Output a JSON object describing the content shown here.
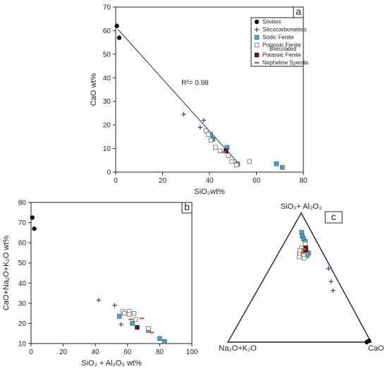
{
  "colors": {
    "sovites": "#111111",
    "silicocarbonatites": "#3a3a9c",
    "sodic_fenite": "#49a6cf",
    "potassic_fenite_fill": "#ffffff",
    "potassic_fenite_stroke": "#777777",
    "brecciated_potassic_fenite": "#6b1a1a",
    "nepheline_syenite": "#e05a2b",
    "axis": "#222222"
  },
  "chart_data": [
    {
      "panel": "a",
      "type": "scatter",
      "title": "",
      "xlabel": "SiO₂wt%",
      "ylabel": "CaO wt%",
      "xlim": [
        0,
        80
      ],
      "ylim": [
        0,
        70
      ],
      "xticks": [
        "0",
        "20",
        "40",
        "60",
        "80"
      ],
      "yticks": [
        "0",
        "10",
        "20",
        "30",
        "40",
        "50",
        "60",
        "70"
      ],
      "xtick_values": [
        0,
        20,
        40,
        60,
        80
      ],
      "ytick_values": [
        0,
        10,
        20,
        30,
        40,
        50,
        60,
        70
      ],
      "legend_position": "top-right",
      "legend": [
        {
          "key": "sovites",
          "label": "Sövites"
        },
        {
          "key": "silicocarbonatites",
          "label": "Silicocarbonatites"
        },
        {
          "key": "sodic_fenite",
          "label": "Sodic Fenite"
        },
        {
          "key": "potassic_fenite",
          "label": "Potassic Fenite"
        },
        {
          "key": "brecciated_potassic_fenite",
          "label": "Brecciated",
          "label2": "Potassic Fenite"
        },
        {
          "key": "nepheline_syenite",
          "label": "Nepheline Syenite"
        }
      ],
      "annotation": "R²= 0.98",
      "trendline": [
        [
          1,
          60.5
        ],
        [
          53,
          3
        ]
      ],
      "series": [
        {
          "key": "sovites",
          "points": [
            [
              0.5,
              62
            ],
            [
              1.5,
              57
            ]
          ]
        },
        {
          "key": "silicocarbonatites",
          "points": [
            [
              29,
              24.5
            ],
            [
              37.5,
              22
            ],
            [
              36,
              19
            ]
          ]
        },
        {
          "key": "sodic_fenite",
          "points": [
            [
              40.5,
              16
            ],
            [
              41.5,
              14
            ],
            [
              47.5,
              10.5
            ],
            [
              47,
              9
            ],
            [
              52,
              3.5
            ],
            [
              68.5,
              3.5
            ],
            [
              71,
              2
            ]
          ]
        },
        {
          "key": "potassic_fenite",
          "points": [
            [
              38.5,
              17.5
            ],
            [
              39.5,
              16
            ],
            [
              40.5,
              13.5
            ],
            [
              42.5,
              10.5
            ],
            [
              44.5,
              9
            ],
            [
              48,
              7
            ],
            [
              49.5,
              4.5
            ],
            [
              51.5,
              3
            ],
            [
              57,
              4.5
            ]
          ]
        },
        {
          "key": "brecciated_potassic_fenite",
          "points": [
            [
              47,
              9
            ]
          ]
        },
        {
          "key": "nepheline_syenite",
          "points": [
            [
              46,
              8.5
            ]
          ]
        }
      ]
    },
    {
      "panel": "b",
      "type": "scatter",
      "title": "",
      "xlabel": "SiO₂ + Al₂O₃ wt%",
      "ylabel": "CaO+Na₂O+K₂O wt%",
      "xlim": [
        0,
        100
      ],
      "ylim": [
        10,
        80
      ],
      "xticks": [
        "0",
        "20",
        "40",
        "60",
        "80",
        "100"
      ],
      "yticks": [
        "10",
        "20",
        "30",
        "40",
        "50",
        "60",
        "70",
        "80"
      ],
      "xtick_values": [
        0,
        20,
        40,
        60,
        80,
        100
      ],
      "ytick_values": [
        10,
        20,
        30,
        40,
        50,
        60,
        70,
        80
      ],
      "series": [
        {
          "key": "sovites",
          "points": [
            [
              0.8,
              72.5
            ],
            [
              2,
              67
            ]
          ]
        },
        {
          "key": "silicocarbonatites",
          "points": [
            [
              42,
              31.5
            ],
            [
              52,
              29
            ],
            [
              56,
              19.5
            ]
          ]
        },
        {
          "key": "sodic_fenite",
          "points": [
            [
              55,
              23.5
            ],
            [
              63,
              20
            ],
            [
              73,
              16.5
            ],
            [
              80,
              12.5
            ],
            [
              83,
              11
            ]
          ]
        },
        {
          "key": "potassic_fenite",
          "points": [
            [
              57,
              26
            ],
            [
              58,
              25
            ],
            [
              61,
              26
            ],
            [
              61,
              24.5
            ],
            [
              64,
              25
            ],
            [
              65,
              22
            ],
            [
              73,
              17.5
            ]
          ]
        },
        {
          "key": "brecciated_potassic_fenite",
          "points": [
            [
              66,
              18
            ]
          ]
        },
        {
          "key": "nepheline_syenite",
          "points": [
            [
              62,
              22
            ],
            [
              69,
              22.5
            ],
            [
              75,
              15.5
            ]
          ]
        }
      ]
    },
    {
      "panel": "c",
      "type": "ternary",
      "title": "",
      "apex_top": "SiO₂+ Al₂O₃",
      "apex_left": "Na₂O+K₂O",
      "apex_right": "CaO",
      "series": [
        {
          "key": "sovites",
          "points": [
            [
              0.0,
              0.03,
              0.97
            ],
            [
              0.01,
              0.01,
              0.98
            ]
          ]
        },
        {
          "key": "silicocarbonatites",
          "points": [
            [
              0.57,
              0.02,
              0.41
            ],
            [
              0.47,
              0.05,
              0.48
            ],
            [
              0.4,
              0.07,
              0.53
            ]
          ]
        },
        {
          "key": "sodic_fenite",
          "points": [
            [
              0.85,
              0.07,
              0.08
            ],
            [
              0.82,
              0.08,
              0.1
            ],
            [
              0.8,
              0.08,
              0.12
            ],
            [
              0.78,
              0.08,
              0.14
            ],
            [
              0.7,
              0.13,
              0.17
            ],
            [
              0.69,
              0.1,
              0.21
            ],
            [
              0.67,
              0.12,
              0.21
            ]
          ]
        },
        {
          "key": "potassic_fenite",
          "points": [
            [
              0.76,
              0.09,
              0.15
            ],
            [
              0.73,
              0.13,
              0.14
            ],
            [
              0.71,
              0.15,
              0.14
            ],
            [
              0.68,
              0.17,
              0.15
            ],
            [
              0.66,
              0.18,
              0.16
            ],
            [
              0.68,
              0.14,
              0.18
            ],
            [
              0.65,
              0.15,
              0.2
            ],
            [
              0.7,
              0.11,
              0.19
            ]
          ]
        },
        {
          "key": "brecciated_potassic_fenite",
          "points": [
            [
              0.73,
              0.1,
              0.17
            ],
            [
              0.71,
              0.11,
              0.18
            ]
          ]
        },
        {
          "key": "nepheline_syenite",
          "points": [
            [
              0.72,
              0.12,
              0.16
            ],
            [
              0.69,
              0.14,
              0.17
            ]
          ]
        }
      ]
    }
  ]
}
